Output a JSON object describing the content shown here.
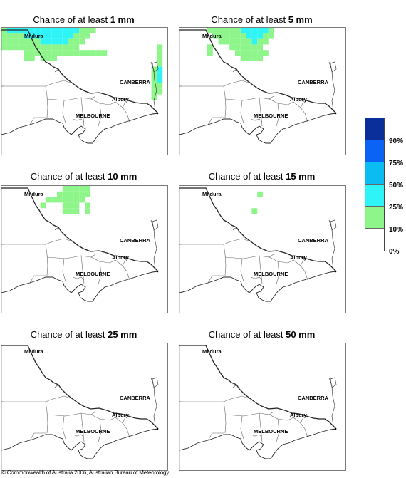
{
  "title_prefix": "Chance of at least ",
  "panels": [
    {
      "amount": "1 mm",
      "cells": [
        [
          0,
          0,
          "#8ef58a"
        ],
        [
          1,
          0,
          "#2ef4f8"
        ],
        [
          2,
          0,
          "#2ef4f8"
        ],
        [
          3,
          0,
          "#2ef4f8"
        ],
        [
          4,
          0,
          "#2ef4f8"
        ],
        [
          5,
          0,
          "#2ef4f8"
        ],
        [
          6,
          0,
          "#2ef4f8"
        ],
        [
          7,
          0,
          "#2ef4f8"
        ],
        [
          8,
          0,
          "#2ef4f8"
        ],
        [
          9,
          0,
          "#2ef4f8"
        ],
        [
          10,
          0,
          "#2ef4f8"
        ],
        [
          11,
          0,
          "#2ef4f8"
        ],
        [
          12,
          0,
          "#2ef4f8"
        ],
        [
          13,
          0,
          "#2ef4f8"
        ],
        [
          14,
          0,
          "#8ef58a"
        ],
        [
          15,
          0,
          "#8ef58a"
        ],
        [
          16,
          0,
          "#8ef58a"
        ],
        [
          0,
          1,
          "#8ef58a"
        ],
        [
          1,
          1,
          "#8ef58a"
        ],
        [
          2,
          1,
          "#8ef58a"
        ],
        [
          3,
          1,
          "#8ef58a"
        ],
        [
          4,
          1,
          "#2ef4f8"
        ],
        [
          5,
          1,
          "#2ef4f8"
        ],
        [
          6,
          1,
          "#2ef4f8"
        ],
        [
          7,
          1,
          "#2ef4f8"
        ],
        [
          8,
          1,
          "#2ef4f8"
        ],
        [
          9,
          1,
          "#2ef4f8"
        ],
        [
          10,
          1,
          "#2ef4f8"
        ],
        [
          11,
          1,
          "#2ef4f8"
        ],
        [
          12,
          1,
          "#2ef4f8"
        ],
        [
          13,
          1,
          "#8ef58a"
        ],
        [
          14,
          1,
          "#8ef58a"
        ],
        [
          15,
          1,
          "#8ef58a"
        ],
        [
          0,
          2,
          "#8ef58a"
        ],
        [
          1,
          2,
          "#8ef58a"
        ],
        [
          2,
          2,
          "#8ef58a"
        ],
        [
          3,
          2,
          "#8ef58a"
        ],
        [
          4,
          2,
          "#8ef58a"
        ],
        [
          5,
          2,
          "#8ef58a"
        ],
        [
          6,
          2,
          "#8ef58a"
        ],
        [
          7,
          2,
          "#2ef4f8"
        ],
        [
          8,
          2,
          "#2ef4f8"
        ],
        [
          9,
          2,
          "#2ef4f8"
        ],
        [
          10,
          2,
          "#2ef4f8"
        ],
        [
          11,
          2,
          "#2ef4f8"
        ],
        [
          12,
          2,
          "#8ef58a"
        ],
        [
          13,
          2,
          "#8ef58a"
        ],
        [
          14,
          2,
          "#8ef58a"
        ],
        [
          0,
          3,
          "#8ef58a"
        ],
        [
          1,
          3,
          "#8ef58a"
        ],
        [
          2,
          3,
          "#8ef58a"
        ],
        [
          3,
          3,
          "#8ef58a"
        ],
        [
          4,
          3,
          "#8ef58a"
        ],
        [
          5,
          3,
          "#8ef58a"
        ],
        [
          6,
          3,
          "#8ef58a"
        ],
        [
          7,
          3,
          "#8ef58a"
        ],
        [
          8,
          3,
          "#8ef58a"
        ],
        [
          9,
          3,
          "#8ef58a"
        ],
        [
          10,
          3,
          "#8ef58a"
        ],
        [
          11,
          3,
          "#8ef58a"
        ],
        [
          12,
          3,
          "#8ef58a"
        ],
        [
          13,
          3,
          "#8ef58a"
        ],
        [
          4,
          4,
          "#8ef58a"
        ],
        [
          5,
          4,
          "#8ef58a"
        ],
        [
          6,
          4,
          "#8ef58a"
        ],
        [
          7,
          4,
          "#8ef58a"
        ],
        [
          8,
          4,
          "#8ef58a"
        ],
        [
          9,
          4,
          "#8ef58a"
        ],
        [
          10,
          4,
          "#8ef58a"
        ],
        [
          11,
          4,
          "#8ef58a"
        ],
        [
          12,
          4,
          "#8ef58a"
        ],
        [
          13,
          4,
          "#8ef58a"
        ],
        [
          14,
          4,
          "#8ef58a"
        ],
        [
          15,
          4,
          "#8ef58a"
        ],
        [
          16,
          4,
          "#8ef58a"
        ],
        [
          17,
          4,
          "#8ef58a"
        ],
        [
          18,
          4,
          "#8ef58a"
        ],
        [
          4,
          5,
          "#8ef58a"
        ],
        [
          5,
          5,
          "#8ef58a"
        ],
        [
          7,
          5,
          "#8ef58a"
        ],
        [
          8,
          5,
          "#8ef58a"
        ],
        [
          9,
          5,
          "#8ef58a"
        ],
        [
          28,
          3,
          "#8ef58a"
        ],
        [
          28,
          4,
          "#8ef58a"
        ],
        [
          28,
          5,
          "#8ef58a"
        ],
        [
          28,
          6,
          "#8ef58a"
        ],
        [
          27,
          7,
          "#8ef58a"
        ],
        [
          28,
          7,
          "#2ef4f8"
        ],
        [
          27,
          8,
          "#8ef58a"
        ],
        [
          28,
          8,
          "#2ef4f8"
        ],
        [
          27,
          9,
          "#8ef58a"
        ],
        [
          28,
          9,
          "#2ef4f8"
        ],
        [
          27,
          10,
          "#8ef58a"
        ],
        [
          28,
          10,
          "#8ef58a"
        ],
        [
          27,
          11,
          "#8ef58a"
        ],
        [
          28,
          11,
          "#8ef58a"
        ],
        [
          27,
          12,
          "#8ef58a"
        ]
      ]
    },
    {
      "amount": "5 mm",
      "cells": [
        [
          5,
          0,
          "#8ef58a"
        ],
        [
          6,
          0,
          "#8ef58a"
        ],
        [
          7,
          0,
          "#8ef58a"
        ],
        [
          8,
          0,
          "#8ef58a"
        ],
        [
          9,
          0,
          "#8ef58a"
        ],
        [
          10,
          0,
          "#8ef58a"
        ],
        [
          11,
          0,
          "#2ef4f8"
        ],
        [
          12,
          0,
          "#2ef4f8"
        ],
        [
          13,
          0,
          "#2ef4f8"
        ],
        [
          14,
          0,
          "#2ef4f8"
        ],
        [
          15,
          0,
          "#2ef4f8"
        ],
        [
          16,
          0,
          "#8ef58a"
        ],
        [
          6,
          1,
          "#8ef58a"
        ],
        [
          7,
          1,
          "#8ef58a"
        ],
        [
          8,
          1,
          "#8ef58a"
        ],
        [
          9,
          1,
          "#8ef58a"
        ],
        [
          10,
          1,
          "#8ef58a"
        ],
        [
          11,
          1,
          "#8ef58a"
        ],
        [
          12,
          1,
          "#2ef4f8"
        ],
        [
          13,
          1,
          "#2ef4f8"
        ],
        [
          14,
          1,
          "#2ef4f8"
        ],
        [
          15,
          1,
          "#8ef58a"
        ],
        [
          16,
          1,
          "#8ef58a"
        ],
        [
          7,
          2,
          "#8ef58a"
        ],
        [
          8,
          2,
          "#8ef58a"
        ],
        [
          9,
          2,
          "#8ef58a"
        ],
        [
          10,
          2,
          "#8ef58a"
        ],
        [
          11,
          2,
          "#8ef58a"
        ],
        [
          12,
          2,
          "#8ef58a"
        ],
        [
          13,
          2,
          "#2ef4f8"
        ],
        [
          14,
          2,
          "#8ef58a"
        ],
        [
          15,
          2,
          "#8ef58a"
        ],
        [
          5,
          3,
          "#8ef58a"
        ],
        [
          9,
          3,
          "#8ef58a"
        ],
        [
          10,
          3,
          "#8ef58a"
        ],
        [
          11,
          3,
          "#8ef58a"
        ],
        [
          12,
          3,
          "#8ef58a"
        ],
        [
          13,
          3,
          "#8ef58a"
        ],
        [
          14,
          3,
          "#8ef58a"
        ],
        [
          5,
          4,
          "#8ef58a"
        ],
        [
          10,
          4,
          "#8ef58a"
        ],
        [
          11,
          4,
          "#8ef58a"
        ],
        [
          12,
          4,
          "#8ef58a"
        ],
        [
          13,
          4,
          "#8ef58a"
        ],
        [
          14,
          4,
          "#8ef58a"
        ],
        [
          15,
          4,
          "#8ef58a"
        ],
        [
          11,
          5,
          "#8ef58a"
        ],
        [
          12,
          5,
          "#8ef58a"
        ],
        [
          13,
          5,
          "#8ef58a"
        ],
        [
          14,
          5,
          "#8ef58a"
        ]
      ]
    },
    {
      "amount": "10 mm",
      "cells": [
        [
          11,
          0,
          "#8ef58a"
        ],
        [
          12,
          0,
          "#8ef58a"
        ],
        [
          13,
          0,
          "#8ef58a"
        ],
        [
          14,
          0,
          "#8ef58a"
        ],
        [
          15,
          0,
          "#8ef58a"
        ],
        [
          10,
          1,
          "#8ef58a"
        ],
        [
          11,
          1,
          "#8ef58a"
        ],
        [
          12,
          1,
          "#8ef58a"
        ],
        [
          13,
          1,
          "#8ef58a"
        ],
        [
          14,
          1,
          "#8ef58a"
        ],
        [
          15,
          1,
          "#8ef58a"
        ],
        [
          8,
          2,
          "#8ef58a"
        ],
        [
          9,
          2,
          "#8ef58a"
        ],
        [
          10,
          2,
          "#8ef58a"
        ],
        [
          11,
          2,
          "#8ef58a"
        ],
        [
          12,
          2,
          "#8ef58a"
        ],
        [
          13,
          2,
          "#8ef58a"
        ],
        [
          14,
          2,
          "#8ef58a"
        ],
        [
          7,
          3,
          "#8ef58a"
        ],
        [
          11,
          3,
          "#8ef58a"
        ],
        [
          12,
          3,
          "#8ef58a"
        ],
        [
          13,
          3,
          "#8ef58a"
        ],
        [
          15,
          3,
          "#8ef58a"
        ],
        [
          11,
          4,
          "#8ef58a"
        ],
        [
          12,
          4,
          "#8ef58a"
        ],
        [
          13,
          4,
          "#8ef58a"
        ],
        [
          15,
          4,
          "#8ef58a"
        ]
      ]
    },
    {
      "amount": "15 mm",
      "cells": [
        [
          14,
          1,
          "#8ef58a"
        ],
        [
          13,
          4,
          "#8ef58a"
        ]
      ]
    },
    {
      "amount": "25 mm",
      "cells": []
    },
    {
      "amount": "50 mm",
      "cells": []
    }
  ],
  "places": {
    "mildura": "Mildura",
    "canberra": "CANBERRA",
    "albury": "Albury",
    "melbourne": "MELBOURNE"
  },
  "legend": [
    {
      "color": "#0b2f9a",
      "label": "90%"
    },
    {
      "color": "#0a63f4",
      "label": "75%"
    },
    {
      "color": "#0bbcf2",
      "label": "50%"
    },
    {
      "color": "#2ef4f8",
      "label": "25%"
    },
    {
      "color": "#8ef58a",
      "label": "10%"
    },
    {
      "color": "#ffffff",
      "label": "0%"
    }
  ],
  "copyright": "© Commonwealth of Australia 2006, Australian Bureau of Meteorology"
}
